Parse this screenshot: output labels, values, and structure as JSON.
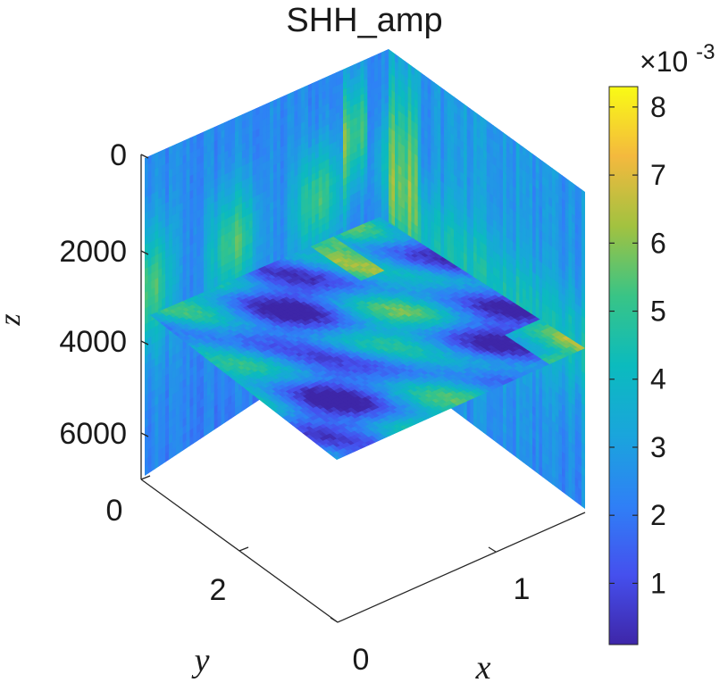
{
  "chart_data": {
    "type": "heatmap",
    "title": "SHH_amp",
    "xlabel": "x",
    "ylabel": "y",
    "zlabel": "z",
    "x_ticks": [
      "0",
      "1"
    ],
    "y_ticks": [
      "0",
      "2"
    ],
    "z_ticks": [
      "0",
      "2000",
      "4000",
      "6000"
    ],
    "z_range": [
      0,
      6800
    ],
    "z_direction": "reverse",
    "colorbar": {
      "ticks": [
        "1",
        "2",
        "3",
        "4",
        "5",
        "6",
        "7",
        "8"
      ],
      "exponent_label": "×10",
      "exponent_power": "-3",
      "range": [
        0.0001,
        0.0083
      ],
      "colormap": "parula"
    },
    "slices": [
      "back x-z plane",
      "right y-z plane",
      "horizontal x-y plane at z≈3500"
    ]
  }
}
